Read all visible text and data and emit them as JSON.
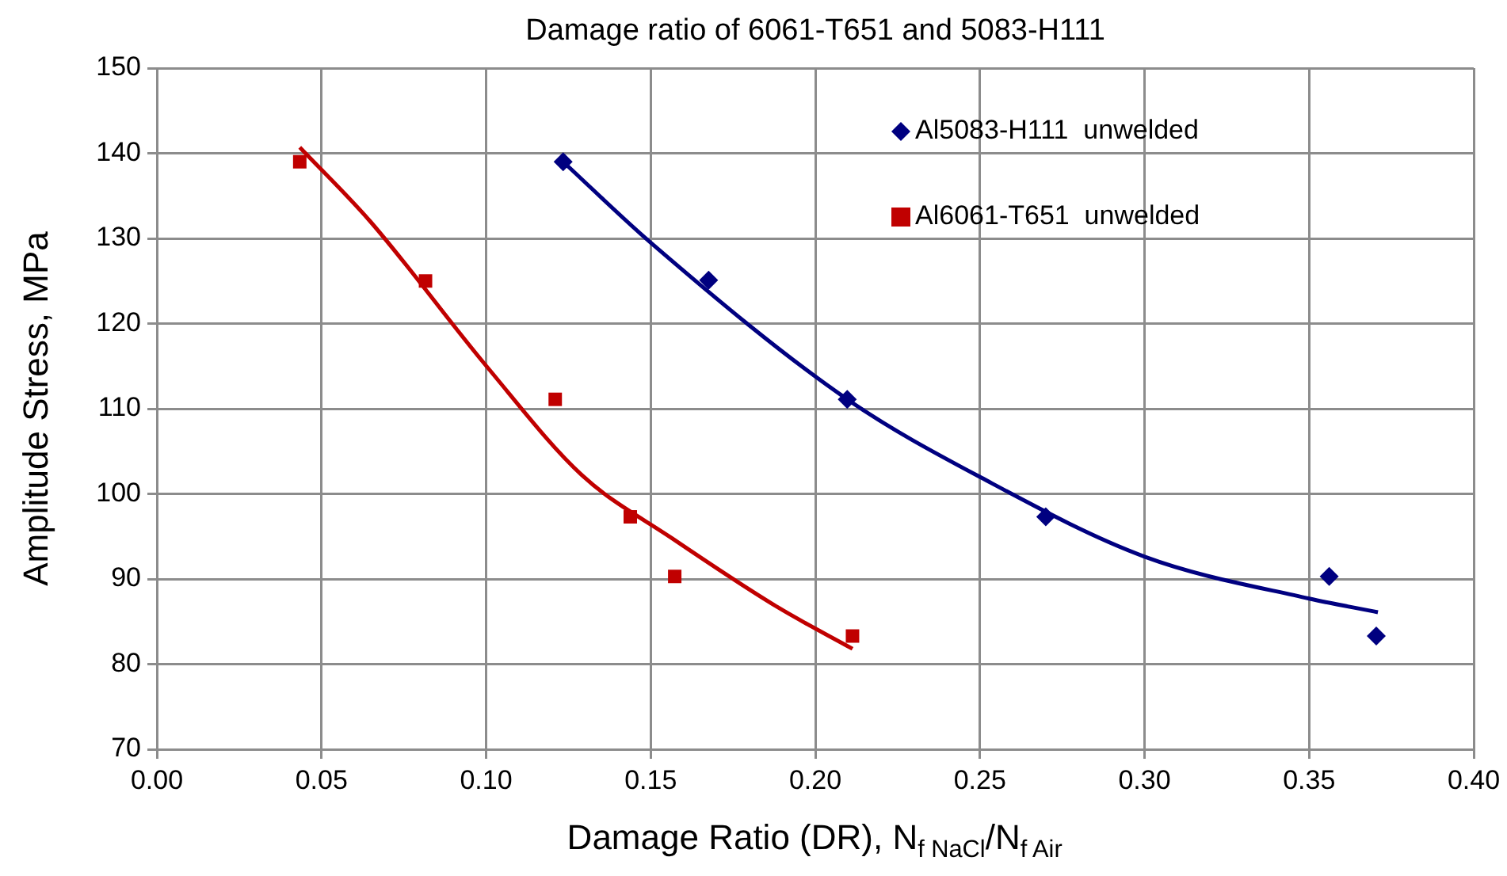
{
  "chart_data": {
    "type": "scatter",
    "title": "Damage ratio of 6061-T651 and 5083-H111",
    "xlabel": "Damage Ratio (DR), N$_{f NaCl}$/N$_{f Air}$",
    "ylabel": "Amplitude Stress, MPa",
    "xlim": [
      0,
      0.4
    ],
    "xticks": [
      {
        "value": 0,
        "label": "0.00"
      },
      {
        "value": 0.05,
        "label": "0.05"
      },
      {
        "value": 0.1,
        "label": "0.10"
      },
      {
        "value": 0.15,
        "label": "0.15"
      },
      {
        "value": 0.2,
        "label": "0.20"
      },
      {
        "value": 0.25,
        "label": "0.25"
      },
      {
        "value": 0.3,
        "label": "0.30"
      },
      {
        "value": 0.35,
        "label": "0.35"
      },
      {
        "value": 0.4,
        "label": "0.40"
      }
    ],
    "ylim": [
      70,
      150
    ],
    "yticks": [
      70,
      80,
      90,
      100,
      110,
      120,
      130,
      140,
      150
    ],
    "grid": true,
    "legend": "top right",
    "series": [
      {
        "name": "Al5083-H111  unwelded",
        "marker": "diamond",
        "color": "#000080",
        "x": [
          0.1234,
          0.1676,
          0.2097,
          0.27,
          0.3561,
          0.3704
        ],
        "values": [
          139,
          125.1,
          111.1,
          97.3,
          90.3,
          83.3
        ]
      },
      {
        "name": "Al6061-T651  unwelded",
        "marker": "square",
        "color": "#c00000",
        "x": [
          0.0434,
          0.0816,
          0.121,
          0.1438,
          0.1573,
          0.2113
        ],
        "values": [
          139,
          125,
          111.1,
          97.3,
          90.3,
          83.3
        ]
      },
      {
        "type": "line",
        "marker": "none",
        "color": "#000080",
        "x": [
          0.1234,
          0.15,
          0.2097,
          0.2504,
          0.3002,
          0.35,
          0.3709
        ],
        "values": [
          139,
          129.5,
          111.1,
          101.9,
          92.6,
          87.7,
          86.1
        ]
      },
      {
        "type": "line",
        "marker": "none",
        "color": "#c00000",
        "x": [
          0.0434,
          0.0648,
          0.1001,
          0.1291,
          0.1564,
          0.1885,
          0.2113
        ],
        "values": [
          140.7,
          132.0,
          115.0,
          102.2,
          94.8,
          86.7,
          81.8
        ]
      }
    ]
  }
}
